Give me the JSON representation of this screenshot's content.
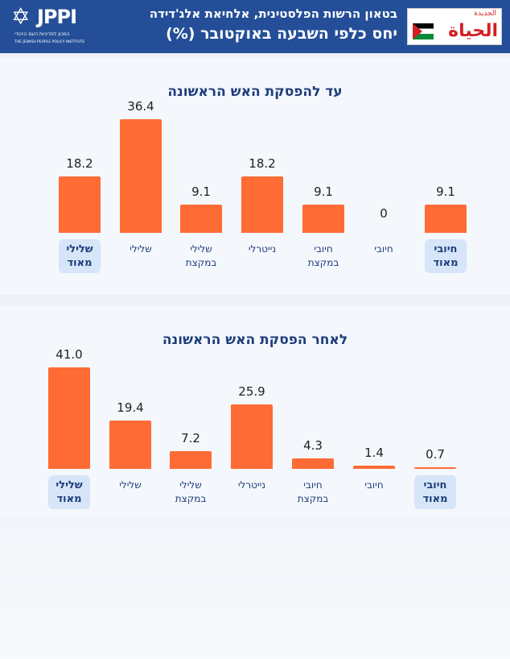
{
  "header": {
    "logo_text": "JPPI",
    "logo_sub_hebrew": "המכון למדיניות העם היהודי",
    "logo_sub_english": "THE JEWISH PEOPLE POLICY INSTITUTE",
    "title_line1": "בטאון הרשות הפלסטינית, אלחיאת אלג'דידה",
    "title_line2": "יחס כלפי השבעה באוקטובר (%)",
    "newspaper_logo": "الحياة الجديدة",
    "colors": {
      "header_bg": "#244f98",
      "bar": "#ff6b35",
      "title": "#1d3d7a"
    }
  },
  "chart_data": [
    {
      "type": "bar",
      "title": "עד להפסקת האש הראשונה",
      "categories": [
        "שלילי מאוד",
        "שלילי",
        "שלילי במקצת",
        "נייטרלי",
        "חיובי במקצת",
        "חיובי",
        "חיובי מאוד"
      ],
      "values": [
        18.2,
        36.4,
        9.1,
        18.2,
        9.1,
        0,
        9.1
      ],
      "value_labels": [
        "18.2",
        "36.4",
        "9.1",
        "18.2",
        "9.1",
        "0",
        "9.1"
      ],
      "highlighted": [
        true,
        false,
        false,
        false,
        false,
        false,
        true
      ]
    },
    {
      "type": "bar",
      "title": "לאחר הפסקת האש הראשונה",
      "categories": [
        "שלילי מאוד",
        "שלילי",
        "שלילי במקצת",
        "נייטרלי",
        "חיובי במקצת",
        "חיובי",
        "חיובי מאוד"
      ],
      "values": [
        41.0,
        19.4,
        7.2,
        25.9,
        4.3,
        1.4,
        0.7
      ],
      "value_labels": [
        "41.0",
        "19.4",
        "7.2",
        "25.9",
        "4.3",
        "1.4",
        "0.7"
      ],
      "highlighted": [
        true,
        false,
        false,
        false,
        false,
        false,
        true
      ]
    }
  ]
}
